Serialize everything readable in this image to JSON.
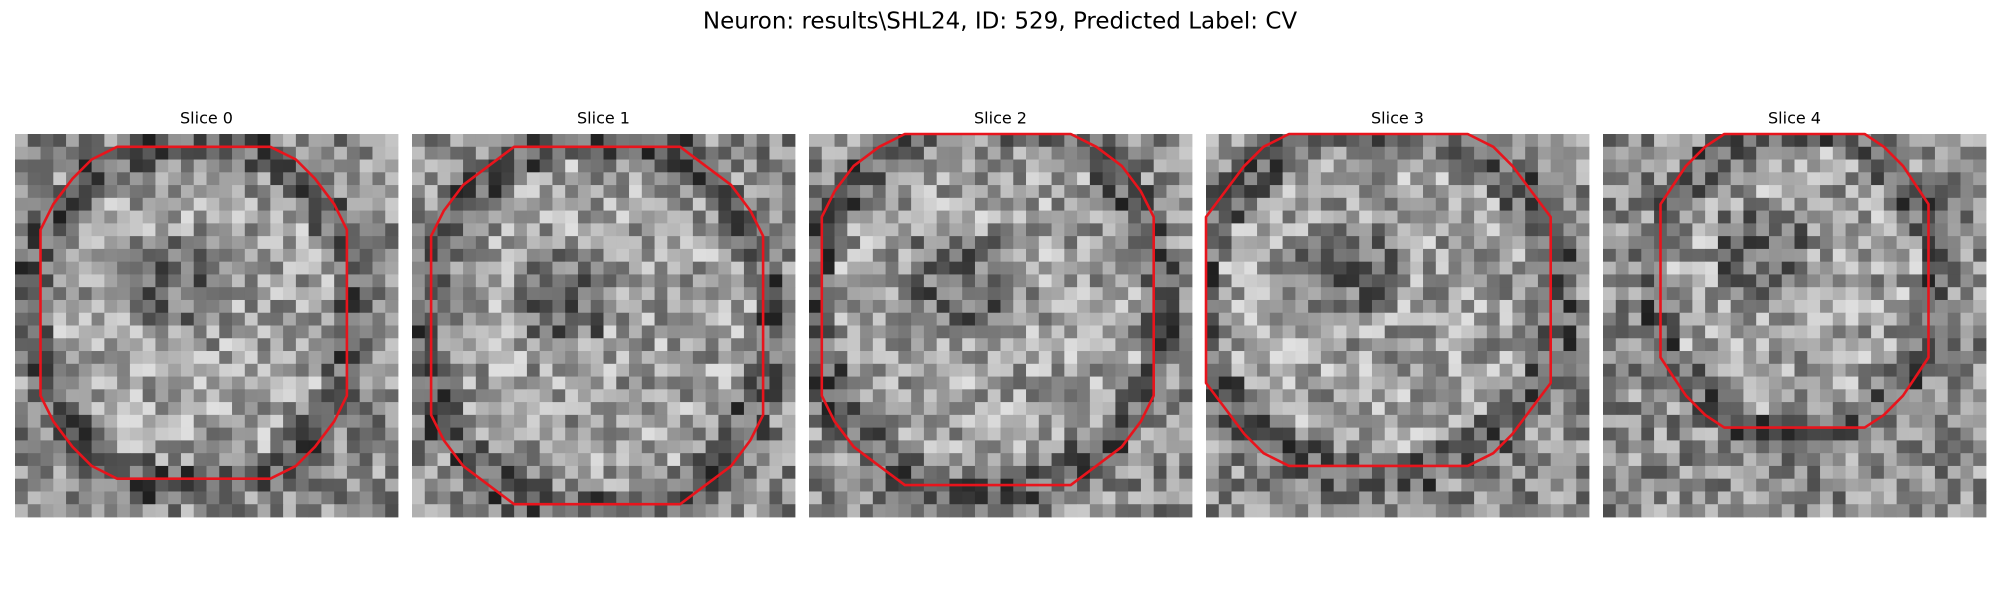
{
  "title": "Neuron: results\\SHL24, ID: 529, Predicted Label: CV",
  "panels": [
    {
      "title": "Slice 0"
    },
    {
      "title": "Slice 1"
    },
    {
      "title": "Slice 2"
    },
    {
      "title": "Slice 3"
    },
    {
      "title": "Slice 4"
    }
  ]
}
